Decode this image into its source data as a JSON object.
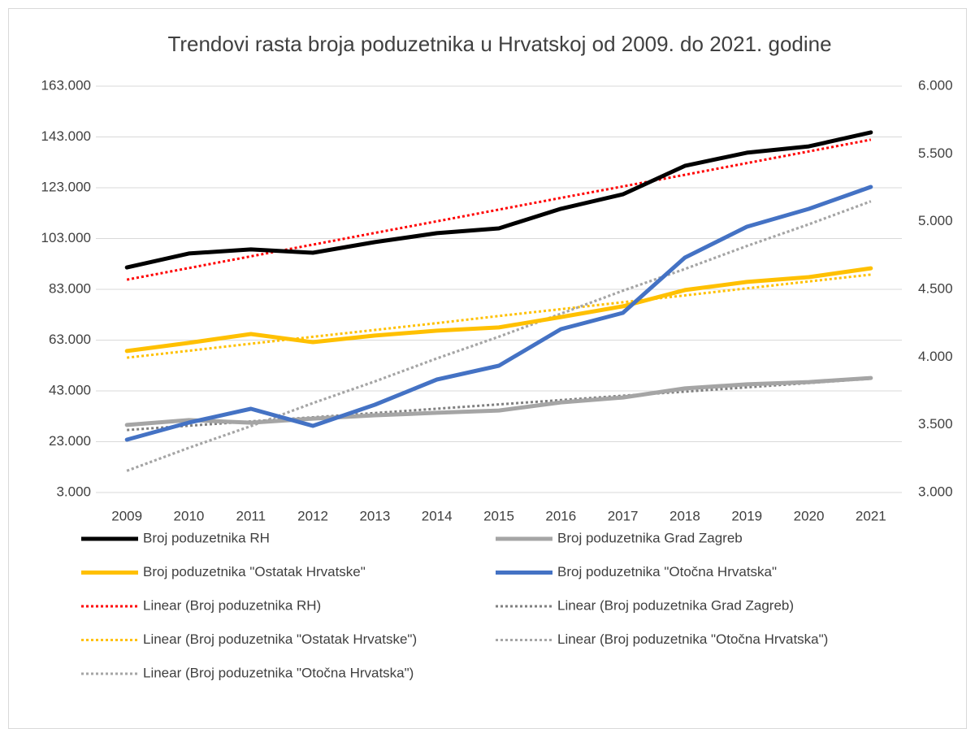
{
  "chart_data": {
    "type": "line",
    "title": "Trendovi rasta broja poduzetnika u Hrvatskoj od 2009. do 2021. godine",
    "categories": [
      "2009",
      "2010",
      "2011",
      "2012",
      "2013",
      "2014",
      "2015",
      "2016",
      "2017",
      "2018",
      "2019",
      "2020",
      "2021"
    ],
    "ylim": [
      3000,
      163000
    ],
    "yticks": [
      {
        "value": 3000,
        "label": "3.000"
      },
      {
        "value": 23000,
        "label": "23.000"
      },
      {
        "value": 43000,
        "label": "43.000"
      },
      {
        "value": 63000,
        "label": "63.000"
      },
      {
        "value": 83000,
        "label": "83.000"
      },
      {
        "value": 103000,
        "label": "103.000"
      },
      {
        "value": 123000,
        "label": "123.000"
      },
      {
        "value": 143000,
        "label": "143.000"
      },
      {
        "value": 163000,
        "label": "163.000"
      }
    ],
    "y2lim": [
      3000,
      6000
    ],
    "y2ticks": [
      {
        "value": 3000,
        "label": "3.000"
      },
      {
        "value": 3500,
        "label": "3.500"
      },
      {
        "value": 4000,
        "label": "4.000"
      },
      {
        "value": 4500,
        "label": "4.500"
      },
      {
        "value": 5000,
        "label": "5.000"
      },
      {
        "value": 5500,
        "label": "5.500"
      },
      {
        "value": 6000,
        "label": "6.000"
      }
    ],
    "grid": true,
    "legend": "bottom",
    "series": [
      {
        "name": "Broj poduzetnika RH",
        "color": "#000000",
        "values": [
          91600,
          97100,
          98700,
          97400,
          101600,
          105100,
          107000,
          114700,
          120400,
          131600,
          136800,
          139300,
          144800
        ]
      },
      {
        "name": "Broj poduzetnika Grad Zagreb",
        "color": "#a5a5a5",
        "values": [
          29600,
          31500,
          30500,
          32100,
          33400,
          34400,
          35300,
          38500,
          40400,
          44000,
          45600,
          46500,
          48100
        ]
      },
      {
        "name": "Broj poduzetnika \"Ostatak Hrvatske\"",
        "color": "#ffc000",
        "values": [
          58700,
          61900,
          65400,
          62200,
          64800,
          66700,
          68000,
          72100,
          76300,
          82700,
          85900,
          87800,
          91300
        ]
      },
      {
        "name": "Broj poduzetnika \"Otočna Hrvatska\"",
        "color": "#4472c4",
        "axis": "y2",
        "values": [
          3390,
          3516,
          3618,
          3492,
          3648,
          3834,
          3936,
          4206,
          4326,
          4734,
          4962,
          5094,
          5256
        ]
      },
      {
        "name": "Linear (Broj poduzetnika RH)",
        "color": "#ff0000",
        "dash": "dot",
        "values": [
          86800,
          91400,
          96000,
          100600,
          105200,
          109800,
          114400,
          119000,
          123500,
          128100,
          132700,
          137300,
          141900
        ]
      },
      {
        "name": "Linear (Broj poduzetnika Grad Zagreb)",
        "color": "#7f7f7f",
        "dash": "dot",
        "values": [
          27600,
          29300,
          31000,
          32600,
          34300,
          36000,
          37700,
          39400,
          41100,
          42700,
          44400,
          46100,
          47800
        ]
      },
      {
        "name": "Linear (Broj poduzetnika \"Ostatak Hrvatske\")",
        "color": "#ffc000",
        "dash": "dot",
        "values": [
          56100,
          58800,
          61600,
          64300,
          67000,
          69700,
          72500,
          75200,
          77900,
          80600,
          83400,
          86100,
          88800
        ]
      },
      {
        "name": "Linear (Broj poduzetnika \"Otočna Hrvatska\")",
        "color": "#a5a5a5",
        "dash": "dot",
        "axis": "y2",
        "values": [
          3160,
          3330,
          3490,
          3660,
          3820,
          3990,
          4150,
          4320,
          4490,
          4650,
          4820,
          4980,
          5150
        ]
      },
      {
        "name": "Linear (Broj poduzetnika \"Otočna Hrvatska\")",
        "color": "#a5a5a5",
        "dash": "dot",
        "axis": "y2",
        "values": [
          3160,
          3330,
          3490,
          3660,
          3820,
          3990,
          4150,
          4320,
          4490,
          4650,
          4820,
          4980,
          5150
        ]
      }
    ]
  }
}
